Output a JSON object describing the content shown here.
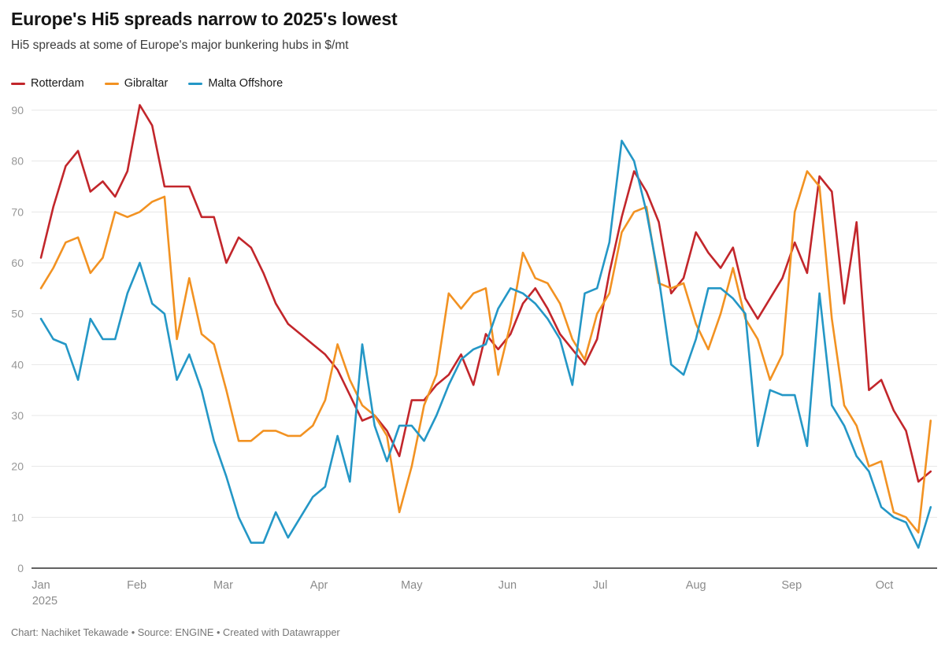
{
  "header": {
    "title": "Europe's Hi5 spreads narrow to 2025's lowest",
    "subtitle": "Hi5 spreads at some of Europe's major bunkering hubs in $/mt"
  },
  "legend": {
    "items": [
      {
        "label": "Rotterdam",
        "color": "#c2262b"
      },
      {
        "label": "Gibraltar",
        "color": "#f29222"
      },
      {
        "label": "Malta Offshore",
        "color": "#2497c6"
      }
    ]
  },
  "chart_data": {
    "type": "line",
    "title": "Europe's Hi5 spreads narrow to 2025's lowest",
    "ylabel": "",
    "xlabel": "",
    "unit": "$/mt",
    "ylim": [
      0,
      90
    ],
    "yticks": [
      0,
      10,
      20,
      30,
      40,
      50,
      60,
      70,
      80,
      90
    ],
    "grid": "horizontal",
    "legend_position": "top-left",
    "year_label": "2025",
    "xticks": [
      {
        "label": "Jan",
        "day": 0
      },
      {
        "label": "Feb",
        "day": 31
      },
      {
        "label": "Mar",
        "day": 59
      },
      {
        "label": "Apr",
        "day": 90
      },
      {
        "label": "May",
        "day": 120
      },
      {
        "label": "Jun",
        "day": 151
      },
      {
        "label": "Jul",
        "day": 181
      },
      {
        "label": "Aug",
        "day": 212
      },
      {
        "label": "Sep",
        "day": 243
      },
      {
        "label": "Oct",
        "day": 273
      }
    ],
    "x_day_step": 4,
    "x": [
      "Jan 1",
      "Jan 5",
      "Jan 9",
      "Jan 13",
      "Jan 17",
      "Jan 21",
      "Jan 25",
      "Jan 29",
      "Feb 2",
      "Feb 6",
      "Feb 10",
      "Feb 14",
      "Feb 18",
      "Feb 22",
      "Feb 26",
      "Mar 2",
      "Mar 6",
      "Mar 10",
      "Mar 14",
      "Mar 18",
      "Mar 22",
      "Mar 26",
      "Mar 30",
      "Apr 3",
      "Apr 7",
      "Apr 11",
      "Apr 15",
      "Apr 19",
      "Apr 23",
      "Apr 27",
      "May 1",
      "May 5",
      "May 9",
      "May 13",
      "May 17",
      "May 21",
      "May 25",
      "May 29",
      "Jun 2",
      "Jun 6",
      "Jun 10",
      "Jun 14",
      "Jun 18",
      "Jun 22",
      "Jun 26",
      "Jun 30",
      "Jul 4",
      "Jul 8",
      "Jul 12",
      "Jul 16",
      "Jul 20",
      "Jul 24",
      "Jul 28",
      "Aug 1",
      "Aug 5",
      "Aug 9",
      "Aug 13",
      "Aug 17",
      "Aug 21",
      "Aug 25",
      "Aug 29",
      "Sep 2",
      "Sep 6",
      "Sep 10",
      "Sep 14",
      "Sep 18",
      "Sep 22",
      "Sep 26",
      "Sep 30",
      "Oct 4",
      "Oct 8",
      "Oct 12",
      "Oct 16"
    ],
    "series": [
      {
        "name": "Rotterdam",
        "color": "#c2262b",
        "values": [
          61,
          71,
          79,
          82,
          74,
          76,
          73,
          78,
          91,
          87,
          75,
          75,
          75,
          69,
          69,
          60,
          65,
          63,
          58,
          52,
          48,
          46,
          44,
          42,
          39,
          34,
          29,
          30,
          27,
          22,
          33,
          33,
          36,
          38,
          42,
          36,
          46,
          43,
          46,
          52,
          55,
          51,
          46,
          43,
          40,
          45,
          58,
          69,
          78,
          74,
          68,
          54,
          57,
          66,
          62,
          59,
          63,
          53,
          49,
          53,
          57,
          64,
          58,
          77,
          74,
          52,
          68,
          35,
          37,
          31,
          27,
          17,
          19
        ]
      },
      {
        "name": "Gibraltar",
        "color": "#f29222",
        "values": [
          55,
          59,
          64,
          65,
          58,
          61,
          70,
          69,
          70,
          72,
          73,
          45,
          57,
          46,
          44,
          35,
          25,
          25,
          27,
          27,
          26,
          26,
          28,
          33,
          44,
          37,
          32,
          30,
          26,
          11,
          20,
          32,
          38,
          54,
          51,
          54,
          55,
          38,
          48,
          62,
          57,
          56,
          52,
          45,
          41,
          50,
          54,
          66,
          70,
          71,
          56,
          55,
          56,
          48,
          43,
          50,
          59,
          49,
          45,
          37,
          42,
          70,
          78,
          75,
          49,
          32,
          28,
          20,
          21,
          11,
          10,
          7,
          29
        ]
      },
      {
        "name": "Malta Offshore",
        "color": "#2497c6",
        "values": [
          49,
          45,
          44,
          37,
          49,
          45,
          45,
          54,
          60,
          52,
          50,
          37,
          42,
          35,
          25,
          18,
          10,
          5,
          5,
          11,
          6,
          10,
          14,
          16,
          26,
          17,
          44,
          28,
          21,
          28,
          28,
          25,
          30,
          36,
          41,
          43,
          44,
          51,
          55,
          54,
          52,
          49,
          45,
          36,
          54,
          55,
          64,
          84,
          80,
          70,
          57,
          40,
          38,
          45,
          55,
          55,
          53,
          50,
          24,
          35,
          34,
          34,
          24,
          54,
          32,
          28,
          22,
          19,
          12,
          10,
          9,
          4,
          12
        ]
      }
    ]
  },
  "footer": {
    "credit": "Chart: Nachiket Tekawade • Source: ENGINE • Created with Datawrapper"
  }
}
